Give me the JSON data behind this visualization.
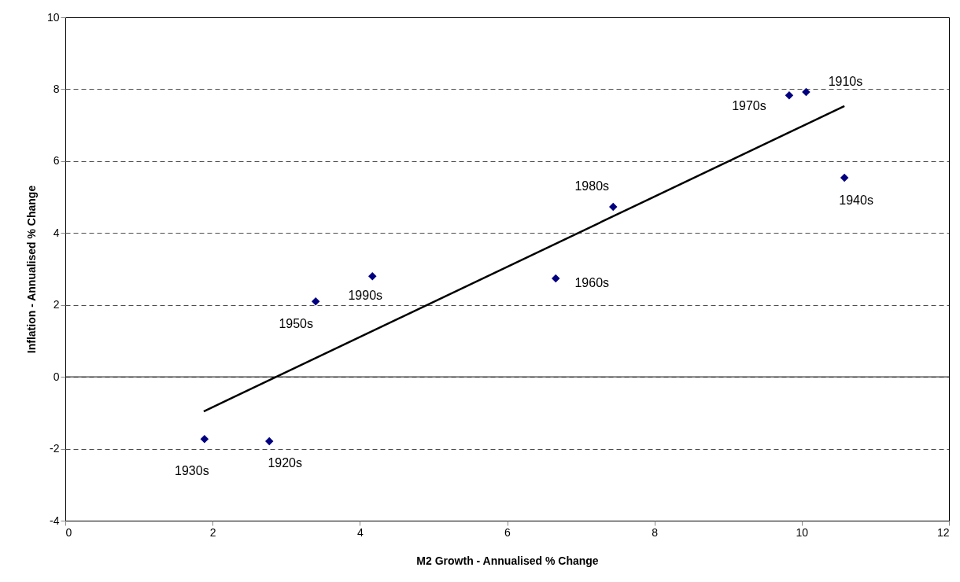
{
  "chart_data": {
    "type": "scatter",
    "xlabel": "M2 Growth - Annualised % Change",
    "ylabel": "Inflation - Annualised % Change",
    "xlim": [
      0,
      12
    ],
    "xticks": [
      0,
      2,
      4,
      6,
      8,
      10,
      12
    ],
    "ylim": [
      -4,
      10
    ],
    "yticks": [
      -4,
      -2,
      0,
      2,
      4,
      6,
      8,
      10
    ],
    "grid": "y",
    "marker": "diamond",
    "ref_lines": [
      {
        "axis": "y",
        "value": 0,
        "color": "#000000",
        "line_style": "solid"
      }
    ],
    "series": [
      {
        "color": "#000080",
        "x": [
          1.89,
          2.77,
          3.4,
          4.17,
          6.66,
          7.44,
          9.83,
          10.06,
          10.58
        ],
        "values": [
          -1.73,
          -1.79,
          2.1,
          2.8,
          2.74,
          4.73,
          7.83,
          7.92,
          5.54
        ]
      },
      {
        "type": "line",
        "color": "#000000",
        "line_style": "solid",
        "marker": "none",
        "x": [
          1.88,
          10.58
        ],
        "values": [
          -0.96,
          7.53
        ]
      }
    ],
    "annotations": [
      {
        "text": "1930s",
        "x": 1.89,
        "y": -1.73
      },
      {
        "text": "1920s",
        "x": 2.77,
        "y": -1.79
      },
      {
        "text": "1950s",
        "x": 3.4,
        "y": 2.1
      },
      {
        "text": "1990s",
        "x": 4.17,
        "y": 2.8
      },
      {
        "text": "1960s",
        "x": 6.66,
        "y": 2.74
      },
      {
        "text": "1980s",
        "x": 7.44,
        "y": 4.73
      },
      {
        "text": "1970s",
        "x": 9.83,
        "y": 7.83
      },
      {
        "text": "1910s",
        "x": 10.06,
        "y": 7.92
      },
      {
        "text": "1940s",
        "x": 10.58,
        "y": 5.54
      }
    ]
  }
}
